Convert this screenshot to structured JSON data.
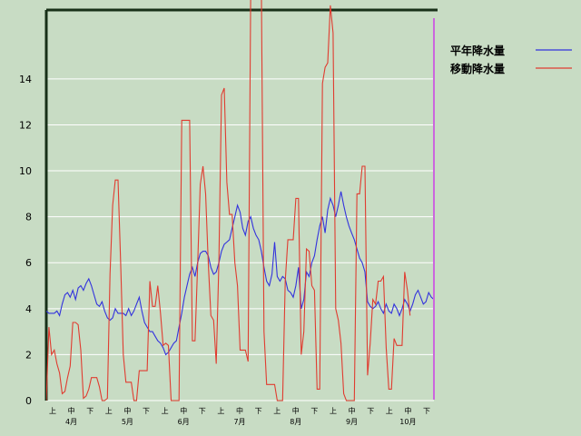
{
  "chart_data": {
    "type": "line",
    "title": "",
    "xlabel": "",
    "ylabel": "",
    "ylim": [
      0,
      17
    ],
    "y_ticks": [
      0,
      2,
      4,
      6,
      8,
      10,
      12,
      14
    ],
    "grid": "horizontal",
    "legend_position": "top-right",
    "x_period_labels": [
      "上",
      "中",
      "下"
    ],
    "months": [
      "4月",
      "5月",
      "6月",
      "7月",
      "8月",
      "9月",
      "10月"
    ],
    "colors": {
      "average": "#3333dd",
      "moving": "#e03c30",
      "marker": "#cc66dd",
      "frame": "#183018"
    },
    "series": [
      {
        "name": "平年降水量",
        "color": "#3333dd",
        "points": [
          [
            0,
            3.9
          ],
          [
            1,
            3.8
          ],
          [
            2,
            3.8
          ],
          [
            3,
            3.8
          ],
          [
            4,
            3.9
          ],
          [
            5,
            3.7
          ],
          [
            6,
            4.2
          ],
          [
            7,
            4.6
          ],
          [
            8,
            4.7
          ],
          [
            9,
            4.5
          ],
          [
            10,
            4.8
          ],
          [
            11,
            4.4
          ],
          [
            12,
            4.9
          ],
          [
            13,
            5.0
          ],
          [
            14,
            4.8
          ],
          [
            15,
            5.1
          ],
          [
            16,
            5.3
          ],
          [
            17,
            5.0
          ],
          [
            18,
            4.6
          ],
          [
            19,
            4.2
          ],
          [
            20,
            4.1
          ],
          [
            21,
            4.3
          ],
          [
            22,
            3.9
          ],
          [
            23,
            3.6
          ],
          [
            24,
            3.5
          ],
          [
            25,
            3.6
          ],
          [
            26,
            4.0
          ],
          [
            27,
            3.8
          ],
          [
            28,
            3.8
          ],
          [
            29,
            3.8
          ],
          [
            30,
            3.7
          ],
          [
            31,
            4.0
          ],
          [
            32,
            3.7
          ],
          [
            33,
            3.9
          ],
          [
            34,
            4.2
          ],
          [
            35,
            4.5
          ],
          [
            36,
            3.9
          ],
          [
            37,
            3.4
          ],
          [
            38,
            3.2
          ],
          [
            39,
            3.0
          ],
          [
            40,
            3.0
          ],
          [
            41,
            2.8
          ],
          [
            42,
            2.6
          ],
          [
            43,
            2.5
          ],
          [
            44,
            2.3
          ],
          [
            45,
            2.0
          ],
          [
            46,
            2.1
          ],
          [
            47,
            2.3
          ],
          [
            48,
            2.5
          ],
          [
            49,
            2.6
          ],
          [
            50,
            3.2
          ],
          [
            51,
            3.8
          ],
          [
            52,
            4.5
          ],
          [
            53,
            5.0
          ],
          [
            54,
            5.5
          ],
          [
            55,
            5.8
          ],
          [
            56,
            5.4
          ],
          [
            57,
            6.0
          ],
          [
            58,
            6.4
          ],
          [
            59,
            6.5
          ],
          [
            60,
            6.5
          ],
          [
            61,
            6.3
          ],
          [
            62,
            5.8
          ],
          [
            63,
            5.5
          ],
          [
            64,
            5.6
          ],
          [
            65,
            6.0
          ],
          [
            66,
            6.5
          ],
          [
            67,
            6.8
          ],
          [
            68,
            6.9
          ],
          [
            69,
            7.0
          ],
          [
            70,
            7.5
          ],
          [
            71,
            8.0
          ],
          [
            72,
            8.5
          ],
          [
            73,
            8.2
          ],
          [
            74,
            7.5
          ],
          [
            75,
            7.2
          ],
          [
            76,
            7.8
          ],
          [
            77,
            8.0
          ],
          [
            78,
            7.5
          ],
          [
            79,
            7.2
          ],
          [
            80,
            7.0
          ],
          [
            81,
            6.5
          ],
          [
            82,
            5.8
          ],
          [
            83,
            5.2
          ],
          [
            84,
            5.0
          ],
          [
            85,
            5.5
          ],
          [
            86,
            6.9
          ],
          [
            87,
            5.4
          ],
          [
            88,
            5.2
          ],
          [
            89,
            5.4
          ],
          [
            90,
            5.3
          ],
          [
            91,
            4.8
          ],
          [
            92,
            4.7
          ],
          [
            93,
            4.5
          ],
          [
            94,
            5.0
          ],
          [
            95,
            5.8
          ],
          [
            96,
            4.0
          ],
          [
            97,
            4.4
          ],
          [
            98,
            5.6
          ],
          [
            99,
            5.4
          ],
          [
            100,
            6.0
          ],
          [
            101,
            6.3
          ],
          [
            102,
            7.0
          ],
          [
            103,
            7.6
          ],
          [
            104,
            8.0
          ],
          [
            105,
            7.3
          ],
          [
            106,
            8.3
          ],
          [
            107,
            8.8
          ],
          [
            108,
            8.5
          ],
          [
            109,
            8.0
          ],
          [
            110,
            8.5
          ],
          [
            111,
            9.1
          ],
          [
            112,
            8.5
          ],
          [
            113,
            8.0
          ],
          [
            114,
            7.6
          ],
          [
            115,
            7.3
          ],
          [
            116,
            7.0
          ],
          [
            117,
            6.6
          ],
          [
            118,
            6.2
          ],
          [
            119,
            6.0
          ],
          [
            120,
            5.6
          ],
          [
            121,
            4.3
          ],
          [
            122,
            4.1
          ],
          [
            123,
            4.0
          ],
          [
            124,
            4.1
          ],
          [
            125,
            4.3
          ],
          [
            126,
            4.0
          ],
          [
            127,
            3.8
          ],
          [
            128,
            4.2
          ],
          [
            129,
            3.9
          ],
          [
            130,
            3.8
          ],
          [
            131,
            4.2
          ],
          [
            132,
            4.0
          ],
          [
            133,
            3.7
          ],
          [
            134,
            4.0
          ],
          [
            135,
            4.4
          ],
          [
            136,
            4.2
          ],
          [
            137,
            3.9
          ],
          [
            138,
            4.2
          ],
          [
            139,
            4.6
          ],
          [
            140,
            4.8
          ],
          [
            141,
            4.5
          ],
          [
            142,
            4.2
          ],
          [
            143,
            4.3
          ],
          [
            144,
            4.7
          ],
          [
            145,
            4.5
          ],
          [
            146,
            4.4
          ]
        ]
      },
      {
        "name": "移動降水量",
        "color": "#e03c30",
        "points": [
          [
            0,
            0
          ],
          [
            1,
            3.2
          ],
          [
            2,
            2.0
          ],
          [
            3,
            2.2
          ],
          [
            4,
            1.6
          ],
          [
            5,
            1.2
          ],
          [
            6,
            0.3
          ],
          [
            7,
            0.4
          ],
          [
            8,
            1.0
          ],
          [
            9,
            1.5
          ],
          [
            10,
            3.4
          ],
          [
            11,
            3.4
          ],
          [
            12,
            3.3
          ],
          [
            13,
            2.2
          ],
          [
            14,
            0.1
          ],
          [
            15,
            0.2
          ],
          [
            16,
            0.5
          ],
          [
            17,
            1.0
          ],
          [
            18,
            1.0
          ],
          [
            19,
            1.0
          ],
          [
            20,
            0.6
          ],
          [
            21,
            0
          ],
          [
            22,
            0
          ],
          [
            23,
            0.1
          ],
          [
            24,
            5.5
          ],
          [
            25,
            8.5
          ],
          [
            26,
            9.6
          ],
          [
            27,
            9.6
          ],
          [
            28,
            6.0
          ],
          [
            29,
            2.0
          ],
          [
            30,
            0.8
          ],
          [
            31,
            0.8
          ],
          [
            32,
            0.8
          ],
          [
            33,
            0
          ],
          [
            34,
            0
          ],
          [
            35,
            1.3
          ],
          [
            36,
            1.3
          ],
          [
            37,
            1.3
          ],
          [
            38,
            1.3
          ],
          [
            39,
            5.2
          ],
          [
            40,
            4.1
          ],
          [
            41,
            4.1
          ],
          [
            42,
            5.0
          ],
          [
            43,
            3.8
          ],
          [
            44,
            2.4
          ],
          [
            45,
            2.5
          ],
          [
            46,
            2.4
          ],
          [
            47,
            0
          ],
          [
            48,
            0
          ],
          [
            49,
            0
          ],
          [
            50,
            0
          ],
          [
            51,
            12.2
          ],
          [
            52,
            12.2
          ],
          [
            53,
            12.2
          ],
          [
            54,
            12.2
          ],
          [
            55,
            2.6
          ],
          [
            56,
            2.6
          ],
          [
            57,
            5.9
          ],
          [
            58,
            9.4
          ],
          [
            59,
            10.2
          ],
          [
            60,
            9.0
          ],
          [
            61,
            6.0
          ],
          [
            62,
            3.7
          ],
          [
            63,
            3.5
          ],
          [
            64,
            1.6
          ],
          [
            65,
            6.0
          ],
          [
            66,
            13.3
          ],
          [
            67,
            13.6
          ],
          [
            68,
            9.5
          ],
          [
            69,
            8.1
          ],
          [
            70,
            8.1
          ],
          [
            71,
            6.0
          ],
          [
            72,
            5.0
          ],
          [
            73,
            2.2
          ],
          [
            74,
            2.2
          ],
          [
            75,
            2.2
          ],
          [
            76,
            1.7
          ],
          [
            77,
            18
          ],
          [
            78,
            18
          ],
          [
            79,
            18
          ],
          [
            80,
            18
          ],
          [
            81,
            18
          ],
          [
            82,
            3.0
          ],
          [
            83,
            0.7
          ],
          [
            84,
            0.7
          ],
          [
            85,
            0.7
          ],
          [
            86,
            0.7
          ],
          [
            87,
            0
          ],
          [
            88,
            0
          ],
          [
            89,
            0
          ],
          [
            90,
            5.2
          ],
          [
            91,
            7.0
          ],
          [
            92,
            7.0
          ],
          [
            93,
            7.0
          ],
          [
            94,
            8.8
          ],
          [
            95,
            8.8
          ],
          [
            96,
            2.0
          ],
          [
            97,
            3.0
          ],
          [
            98,
            6.6
          ],
          [
            99,
            6.5
          ],
          [
            100,
            5.0
          ],
          [
            101,
            4.8
          ],
          [
            102,
            0.5
          ],
          [
            103,
            0.5
          ],
          [
            104,
            13.8
          ],
          [
            105,
            14.5
          ],
          [
            106,
            14.7
          ],
          [
            107,
            17.2
          ],
          [
            108,
            16.0
          ],
          [
            109,
            4.0
          ],
          [
            110,
            3.5
          ],
          [
            111,
            2.5
          ],
          [
            112,
            0.3
          ],
          [
            113,
            0
          ],
          [
            114,
            0
          ],
          [
            115,
            0
          ],
          [
            116,
            0
          ],
          [
            117,
            9.0
          ],
          [
            118,
            9.0
          ],
          [
            119,
            10.2
          ],
          [
            120,
            10.2
          ],
          [
            121,
            1.1
          ],
          [
            122,
            2.5
          ],
          [
            123,
            4.4
          ],
          [
            124,
            4.2
          ],
          [
            125,
            5.2
          ],
          [
            126,
            5.2
          ],
          [
            127,
            5.4
          ],
          [
            128,
            2.3
          ],
          [
            129,
            0.5
          ],
          [
            130,
            0.5
          ],
          [
            131,
            2.7
          ],
          [
            132,
            2.4
          ],
          [
            133,
            2.4
          ],
          [
            134,
            2.4
          ],
          [
            135,
            5.6
          ],
          [
            136,
            4.8
          ],
          [
            137,
            3.7
          ]
        ]
      }
    ],
    "x_range": [
      0,
      146
    ],
    "marker_x": 146
  }
}
